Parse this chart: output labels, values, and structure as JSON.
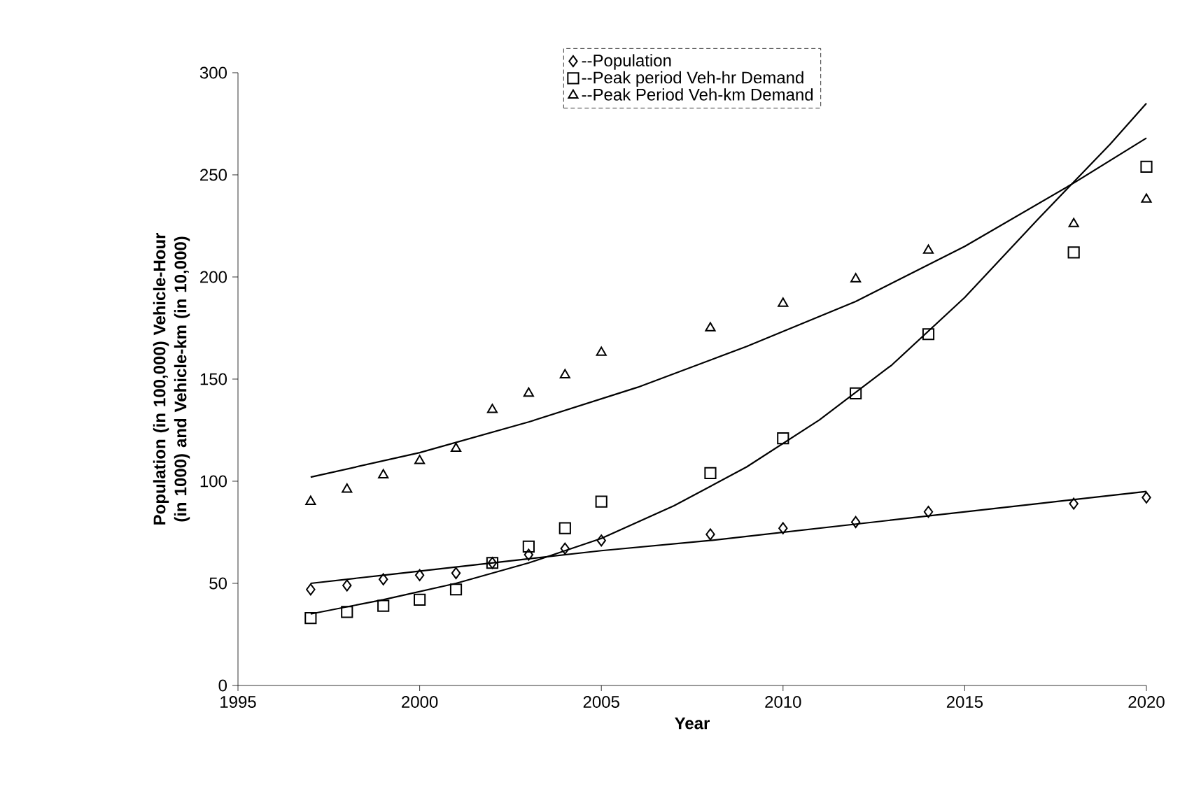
{
  "chart_data": {
    "type": "scatter",
    "xlabel": "Year",
    "ylabel": "Population (in 100,000) Vehicle-Hour (in 1000) and Vehicle-km (in 10,000)",
    "xlim": [
      1995,
      2020
    ],
    "xticks": [
      1995,
      2000,
      2005,
      2010,
      2015,
      2020
    ],
    "ylim": [
      0,
      300
    ],
    "yticks": [
      0,
      50,
      100,
      150,
      200,
      250,
      300
    ],
    "legend": "top",
    "grid": false,
    "series": [
      {
        "name": "--Population",
        "color": "#000000",
        "marker": "diamond",
        "x": [
          1997,
          1998,
          1999,
          2000,
          2001,
          2002,
          2003,
          2004,
          2005,
          2008,
          2010,
          2012,
          2014,
          2018,
          2020
        ],
        "values": [
          47,
          49,
          52,
          54,
          55,
          60,
          64,
          67,
          71,
          74,
          77,
          80,
          85,
          89,
          92
        ]
      },
      {
        "name": "--Peak period Veh-hr Demand",
        "color": "#000000",
        "marker": "square",
        "x": [
          1997,
          1998,
          1999,
          2000,
          2001,
          2002,
          2003,
          2004,
          2005,
          2008,
          2010,
          2012,
          2014,
          2018,
          2020
        ],
        "values": [
          33,
          36,
          39,
          42,
          47,
          60,
          68,
          77,
          90,
          104,
          121,
          143,
          172,
          212,
          254
        ]
      },
      {
        "name": "--Peak Period Veh-km Demand",
        "color": "#000000",
        "marker": "triangle",
        "x": [
          1997,
          1998,
          1999,
          2000,
          2001,
          2002,
          2003,
          2004,
          2005,
          2008,
          2010,
          2012,
          2014,
          2018,
          2020
        ],
        "values": [
          90,
          96,
          103,
          110,
          116,
          135,
          143,
          152,
          163,
          175,
          187,
          199,
          213,
          226,
          238
        ]
      },
      {
        "type": "line",
        "color": "#000000",
        "marker": "none",
        "x": [
          1997,
          1999,
          2001,
          2003,
          2005,
          2008,
          2011,
          2014,
          2017,
          2020
        ],
        "values": [
          50,
          54,
          58,
          62,
          66,
          71,
          77,
          83,
          89,
          95
        ]
      },
      {
        "type": "line",
        "color": "#000000",
        "marker": "none",
        "x": [
          1997,
          1999,
          2001,
          2003,
          2005,
          2007,
          2009,
          2011,
          2013,
          2015,
          2017,
          2019,
          2020
        ],
        "values": [
          35,
          42,
          50,
          60,
          72,
          88,
          107,
          130,
          157,
          190,
          228,
          265,
          285
        ]
      },
      {
        "type": "line",
        "color": "#000000",
        "marker": "none",
        "x": [
          1997,
          2000,
          2003,
          2006,
          2009,
          2012,
          2015,
          2018,
          2020
        ],
        "values": [
          102,
          114,
          129,
          146,
          166,
          188,
          215,
          246,
          268
        ]
      }
    ]
  }
}
